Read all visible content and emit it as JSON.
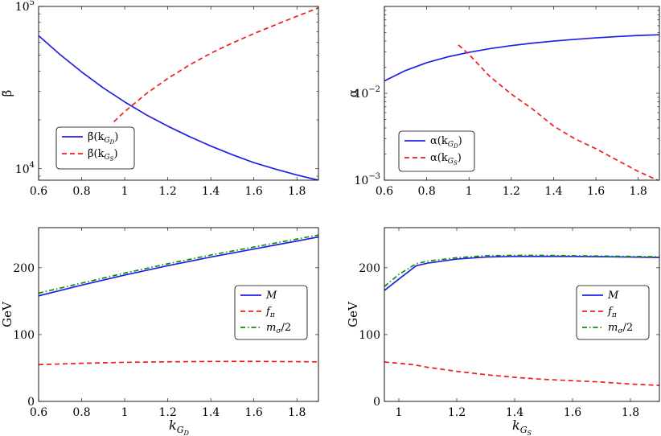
{
  "colors": {
    "blue": "#1f1fe6",
    "red": "#ee1c1c",
    "green": "#0b8f0b"
  },
  "chart_data": [
    {
      "type": "line",
      "yscale": "log",
      "title": "",
      "xlabel": "",
      "ylabel": "β̃",
      "xlim": [
        0.6,
        1.9
      ],
      "ylim": [
        8500,
        100000
      ],
      "xticks": [
        0.6,
        0.8,
        1.0,
        1.2,
        1.4,
        1.6,
        1.8
      ],
      "xtick_labels": [
        "0.6",
        "0.8",
        "1",
        "1.2",
        "1.4",
        "1.6",
        "1.8"
      ],
      "yticks": [
        10000,
        100000
      ],
      "ytick_labels": [
        {
          "base": "10",
          "exp": "4"
        },
        {
          "base": "10",
          "exp": "5"
        }
      ],
      "legend_position": "lower-left",
      "series": [
        {
          "name": "β̃(k_GD)",
          "label_main": "β̃(k",
          "label_sub": "G",
          "label_subsub": "D",
          "label_close": ")",
          "color": "blue",
          "style": "solid",
          "x": [
            0.6,
            0.7,
            0.8,
            0.9,
            1.0,
            1.1,
            1.2,
            1.3,
            1.4,
            1.5,
            1.6,
            1.7,
            1.8,
            1.9
          ],
          "y": [
            66000,
            50500,
            39500,
            31500,
            25800,
            21500,
            18300,
            15800,
            13800,
            12200,
            10900,
            9950,
            9150,
            8500
          ]
        },
        {
          "name": "β̃(k_GS)",
          "label_main": "β̃(k",
          "label_sub": "G",
          "label_subsub": "S",
          "label_close": ")",
          "color": "red",
          "style": "dashed",
          "x": [
            0.95,
            1.0,
            1.1,
            1.2,
            1.3,
            1.4,
            1.5,
            1.6,
            1.7,
            1.8,
            1.9
          ],
          "y": [
            19500,
            22500,
            29000,
            36000,
            43500,
            51500,
            59500,
            68000,
            77000,
            87000,
            98000
          ]
        }
      ]
    },
    {
      "type": "line",
      "yscale": "log",
      "title": "",
      "xlabel": "",
      "ylabel": "α",
      "xlim": [
        0.6,
        1.9
      ],
      "ylim": [
        0.001,
        0.1
      ],
      "xticks": [
        0.6,
        0.8,
        1.0,
        1.2,
        1.4,
        1.6,
        1.8
      ],
      "xtick_labels": [
        "0.6",
        "0.8",
        "1",
        "1.2",
        "1.4",
        "1.6",
        "1.8"
      ],
      "yticks": [
        0.001,
        0.01
      ],
      "ytick_labels": [
        {
          "base": "10",
          "exp": "−3"
        },
        {
          "base": "10",
          "exp": "−2"
        }
      ],
      "legend_position": "lower-left",
      "series": [
        {
          "name": "α(k_GD)",
          "label_main": "α(k",
          "label_sub": "G",
          "label_subsub": "D",
          "label_close": ")",
          "color": "blue",
          "style": "solid",
          "x": [
            0.6,
            0.7,
            0.8,
            0.9,
            1.0,
            1.1,
            1.2,
            1.3,
            1.4,
            1.5,
            1.6,
            1.7,
            1.8,
            1.9
          ],
          "y": [
            0.0139,
            0.0183,
            0.0225,
            0.0263,
            0.0296,
            0.0327,
            0.0354,
            0.0378,
            0.0399,
            0.0418,
            0.0435,
            0.045,
            0.0463,
            0.0472
          ]
        },
        {
          "name": "α(k_GS)",
          "label_main": "α(k",
          "label_sub": "G",
          "label_subsub": "S",
          "label_close": ")",
          "color": "red",
          "style": "dashed",
          "x": [
            0.95,
            1.0,
            1.1,
            1.2,
            1.3,
            1.4,
            1.5,
            1.6,
            1.7,
            1.8,
            1.9
          ],
          "y": [
            0.036,
            0.028,
            0.0155,
            0.0098,
            0.0066,
            0.0042,
            0.003,
            0.0023,
            0.0017,
            0.00126,
            0.00098
          ]
        }
      ]
    },
    {
      "type": "line",
      "yscale": "linear",
      "title": "",
      "xlabel": "k_GD",
      "xlabel_main": "k",
      "xlabel_sub": "G",
      "xlabel_subsub": "D",
      "ylabel": "GeV",
      "xlim": [
        0.6,
        1.9
      ],
      "ylim": [
        0,
        260
      ],
      "xticks": [
        0.6,
        0.8,
        1.0,
        1.2,
        1.4,
        1.6,
        1.8
      ],
      "xtick_labels": [
        "0.6",
        "0.8",
        "1",
        "1.2",
        "1.4",
        "1.6",
        "1.8"
      ],
      "yticks": [
        0,
        100,
        200
      ],
      "ytick_labels": [
        "0",
        "100",
        "200"
      ],
      "legend_position": "right",
      "series": [
        {
          "name": "M",
          "label_main": "M",
          "label_sub": "",
          "color": "blue",
          "style": "solid",
          "x": [
            0.6,
            0.8,
            1.0,
            1.2,
            1.4,
            1.6,
            1.8,
            1.9
          ],
          "y": [
            158,
            174,
            189,
            203,
            216,
            228,
            240,
            246
          ]
        },
        {
          "name": "f_π",
          "label_main": "f",
          "label_sub": "π",
          "color": "red",
          "style": "dashed",
          "x": [
            0.6,
            0.8,
            1.0,
            1.2,
            1.4,
            1.6,
            1.8,
            1.9
          ],
          "y": [
            55,
            57,
            58.5,
            59.3,
            59.8,
            59.9,
            59.5,
            59.2
          ]
        },
        {
          "name": "m_σ/2",
          "label_main": "m",
          "label_sub": "σ",
          "label_tail": "/2",
          "color": "green",
          "style": "dashdot",
          "x": [
            0.6,
            0.8,
            1.0,
            1.2,
            1.4,
            1.6,
            1.8,
            1.9
          ],
          "y": [
            162,
            177,
            192,
            206,
            219,
            231,
            243,
            249
          ]
        }
      ]
    },
    {
      "type": "line",
      "yscale": "linear",
      "title": "",
      "xlabel": "k_GS",
      "xlabel_main": "k",
      "xlabel_sub": "G",
      "xlabel_subsub": "S",
      "ylabel": "GeV",
      "xlim": [
        0.95,
        1.9
      ],
      "ylim": [
        0,
        260
      ],
      "xticks": [
        1.0,
        1.2,
        1.4,
        1.6,
        1.8
      ],
      "xtick_labels": [
        "1",
        "1.2",
        "1.4",
        "1.6",
        "1.8"
      ],
      "yticks": [
        0,
        100,
        200
      ],
      "ytick_labels": [
        "0",
        "100",
        "200"
      ],
      "legend_position": "right",
      "series": [
        {
          "name": "M",
          "label_main": "M",
          "label_sub": "",
          "color": "blue",
          "style": "solid",
          "x": [
            0.95,
            1.0,
            1.06,
            1.1,
            1.2,
            1.3,
            1.4,
            1.5,
            1.6,
            1.7,
            1.8,
            1.9
          ],
          "y": [
            166,
            183,
            203,
            207,
            213,
            216,
            217,
            217,
            217,
            216.5,
            216,
            215.5
          ]
        },
        {
          "name": "f_π",
          "label_main": "f",
          "label_sub": "π",
          "color": "red",
          "style": "dashed",
          "x": [
            0.95,
            1.0,
            1.05,
            1.1,
            1.2,
            1.3,
            1.4,
            1.5,
            1.6,
            1.7,
            1.8,
            1.9
          ],
          "y": [
            59,
            57,
            55,
            51,
            45,
            40,
            36,
            33,
            31,
            29,
            26,
            24
          ]
        },
        {
          "name": "m_σ/2",
          "label_main": "m",
          "label_sub": "σ",
          "label_tail": "/2",
          "color": "green",
          "style": "dashdot",
          "x": [
            0.95,
            1.0,
            1.06,
            1.1,
            1.2,
            1.3,
            1.4,
            1.5,
            1.6,
            1.7,
            1.8,
            1.9
          ],
          "y": [
            172,
            190,
            206,
            210,
            215,
            218,
            218.5,
            218.5,
            218,
            217.5,
            217,
            216.5
          ]
        }
      ]
    }
  ]
}
